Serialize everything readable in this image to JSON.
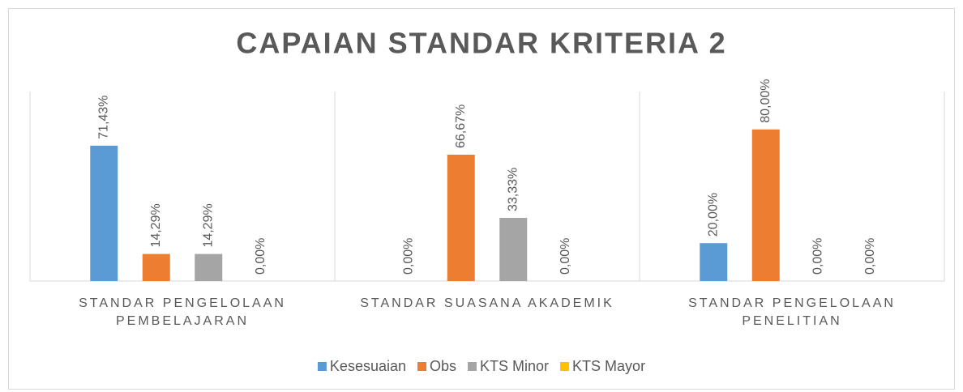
{
  "chart_data": {
    "type": "bar",
    "title": "CAPAIAN STANDAR KRITERIA 2",
    "categories": [
      "STANDAR PENGELOLAAN PEMBELAJARAN",
      "STANDAR SUASANA AKADEMIK",
      "STANDAR PENGELOLAAN PENELITIAN"
    ],
    "series": [
      {
        "name": "Kesesuaian",
        "color": "#5b9bd5",
        "values": [
          71.43,
          0,
          20
        ],
        "value_labels": [
          "71,43%",
          "0,00%",
          "20,00%"
        ]
      },
      {
        "name": "Obs",
        "color": "#ed7d31",
        "values": [
          14.29,
          66.67,
          80
        ],
        "value_labels": [
          "14,29%",
          "66,67%",
          "80,00%"
        ]
      },
      {
        "name": "KTS Minor",
        "color": "#a5a5a5",
        "values": [
          14.29,
          33.33,
          0
        ],
        "value_labels": [
          "14,29%",
          "33,33%",
          "0,00%"
        ]
      },
      {
        "name": "KTS Mayor",
        "color": "#ffc000",
        "values": [
          0,
          0,
          0
        ],
        "value_labels": [
          "0,00%",
          "0,00%",
          "0,00%"
        ]
      }
    ],
    "ylim": [
      0,
      100
    ],
    "legend": "bottom"
  }
}
